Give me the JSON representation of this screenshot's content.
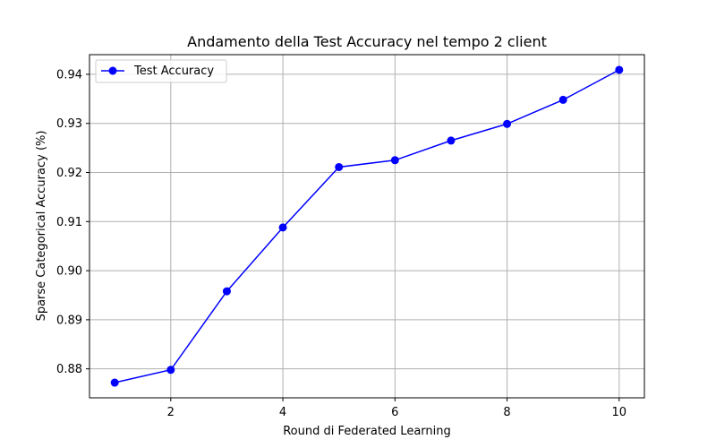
{
  "chart_data": {
    "type": "line",
    "title": "Andamento della Test Accuracy nel tempo 2 client",
    "xlabel": "Round di Federated Learning",
    "ylabel": "Sparse Categorical Accuracy (%)",
    "x": [
      1,
      2,
      3,
      4,
      5,
      6,
      7,
      8,
      9,
      10
    ],
    "series": [
      {
        "name": "Test Accuracy",
        "color": "#0000ff",
        "marker": "circle",
        "values": [
          0.8772,
          0.8798,
          0.8958,
          0.9088,
          0.9211,
          0.9225,
          0.9265,
          0.9299,
          0.9348,
          0.9409
        ]
      }
    ],
    "xlim": [
      0.55,
      10.45
    ],
    "ylim": [
      0.8741,
      0.944
    ],
    "xticks": [
      2,
      4,
      6,
      8,
      10
    ],
    "xtick_labels": [
      "2",
      "4",
      "6",
      "8",
      "10"
    ],
    "yticks": [
      0.88,
      0.89,
      0.9,
      0.91,
      0.92,
      0.93,
      0.94
    ],
    "ytick_labels": [
      "0.88",
      "0.89",
      "0.90",
      "0.91",
      "0.92",
      "0.93",
      "0.94"
    ],
    "grid": true,
    "legend_position": "top-left"
  }
}
